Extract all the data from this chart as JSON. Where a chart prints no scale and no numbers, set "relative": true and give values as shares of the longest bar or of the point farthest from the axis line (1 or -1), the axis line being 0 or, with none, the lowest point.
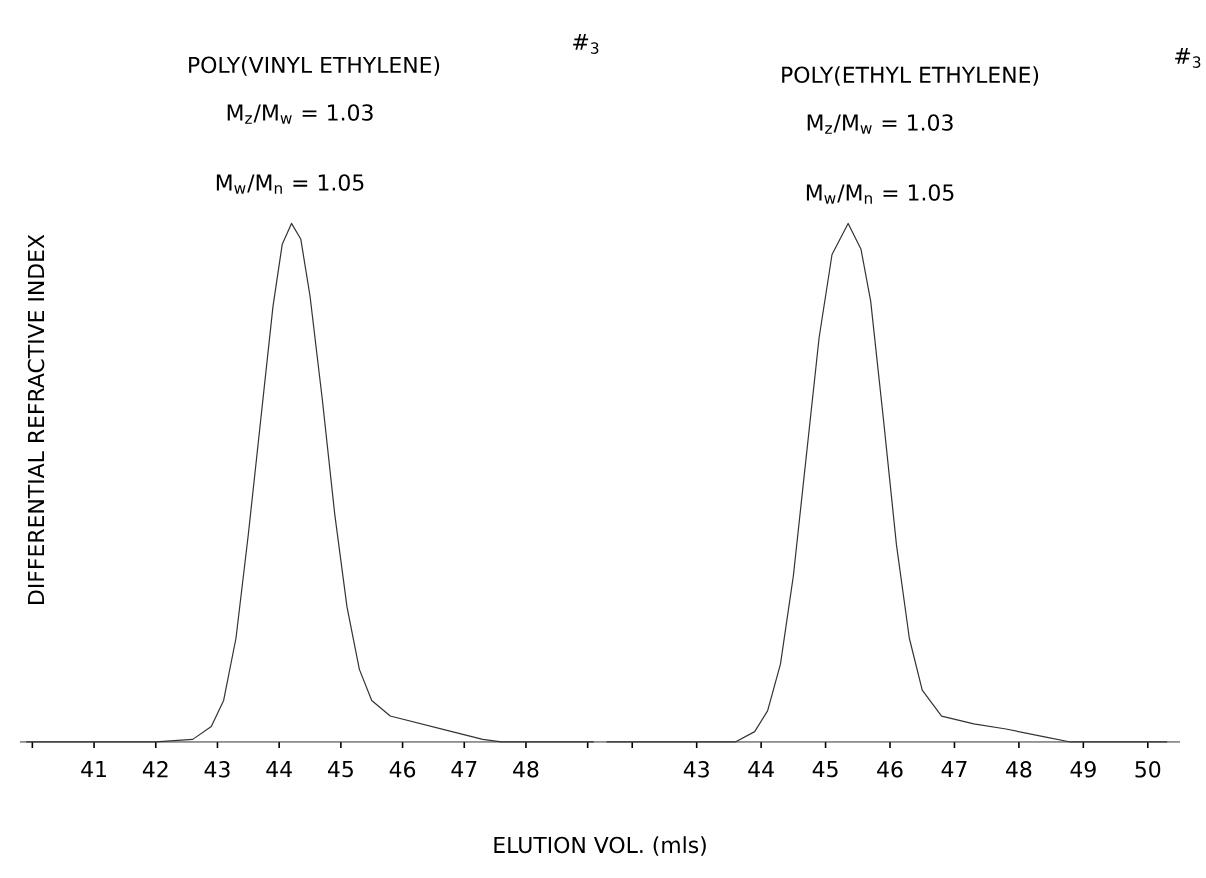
{
  "chart_data": [
    {
      "type": "line",
      "relative": true,
      "color": "#333333",
      "x": [
        39.9,
        42.0,
        42.6,
        42.9,
        43.1,
        43.3,
        43.5,
        43.7,
        43.9,
        44.05,
        44.2,
        44.35,
        44.5,
        44.7,
        44.9,
        45.1,
        45.3,
        45.5,
        45.8,
        46.3,
        46.8,
        47.3,
        47.6,
        49.1
      ],
      "values": [
        0,
        0,
        0.005,
        0.03,
        0.08,
        0.2,
        0.4,
        0.62,
        0.84,
        0.96,
        1.0,
        0.97,
        0.86,
        0.66,
        0.44,
        0.26,
        0.14,
        0.08,
        0.05,
        0.035,
        0.02,
        0.005,
        0,
        0
      ],
      "xlim": [
        39.8,
        49.2
      ],
      "xticks": [
        {
          "value": 40,
          "label": null
        },
        41,
        42,
        43,
        44,
        45,
        46,
        47,
        48,
        {
          "value": 49,
          "label": null
        }
      ],
      "ylabel": "DIFFERENTIAL REFRACTIVE INDEX",
      "annotations": [
        "POLY(VINYL ETHYLENE)",
        "#$_{3}$",
        "M$_{z}$/M$_{w}$ = 1.03",
        "M$_{w}$/M$_{n}$ = 1.05"
      ]
    },
    {
      "type": "line",
      "relative": true,
      "color": "#333333",
      "x": [
        41.6,
        43.6,
        43.9,
        44.1,
        44.3,
        44.5,
        44.7,
        44.9,
        45.1,
        45.35,
        45.55,
        45.7,
        45.9,
        46.1,
        46.3,
        46.5,
        46.8,
        47.3,
        47.8,
        48.4,
        48.8,
        50.3
      ],
      "values": [
        0,
        0,
        0.02,
        0.06,
        0.15,
        0.32,
        0.55,
        0.78,
        0.94,
        1.0,
        0.95,
        0.85,
        0.62,
        0.38,
        0.2,
        0.1,
        0.05,
        0.035,
        0.025,
        0.01,
        0,
        0
      ],
      "xlim": [
        41.5,
        50.5
      ],
      "xticks": [
        {
          "value": 42,
          "label": null
        },
        43,
        44,
        45,
        46,
        47,
        48,
        49,
        50
      ],
      "xlabel": "ELUTION VOL. (mls)",
      "annotations": [
        "POLY(ETHYL ETHYLENE)",
        "#$_{3}$",
        "M$_{z}$/M$_{w}$ = 1.03",
        "M$_{w}$/M$_{n}$ = 1.05"
      ]
    }
  ]
}
